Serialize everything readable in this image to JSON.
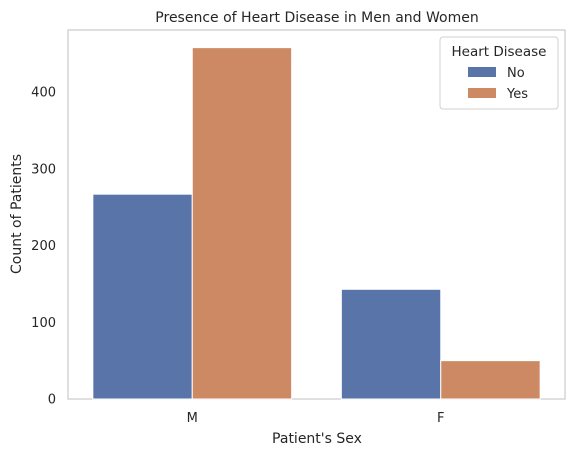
{
  "chart_data": {
    "type": "bar",
    "title": "Presence of Heart Disease in Men and Women",
    "xlabel": "Patient's Sex",
    "ylabel": "Count of Patients",
    "categories": [
      "M",
      "F"
    ],
    "series": [
      {
        "name": "No",
        "values": [
          267,
          143
        ],
        "color": "#5874a8"
      },
      {
        "name": "Yes",
        "values": [
          458,
          50
        ],
        "color": "#cc8963"
      }
    ],
    "ylim": [
      0,
      481
    ],
    "yticks": [
      0,
      100,
      200,
      300,
      400
    ],
    "grid": false,
    "legend": {
      "title": "Heart Disease",
      "placement": "top-right"
    }
  }
}
